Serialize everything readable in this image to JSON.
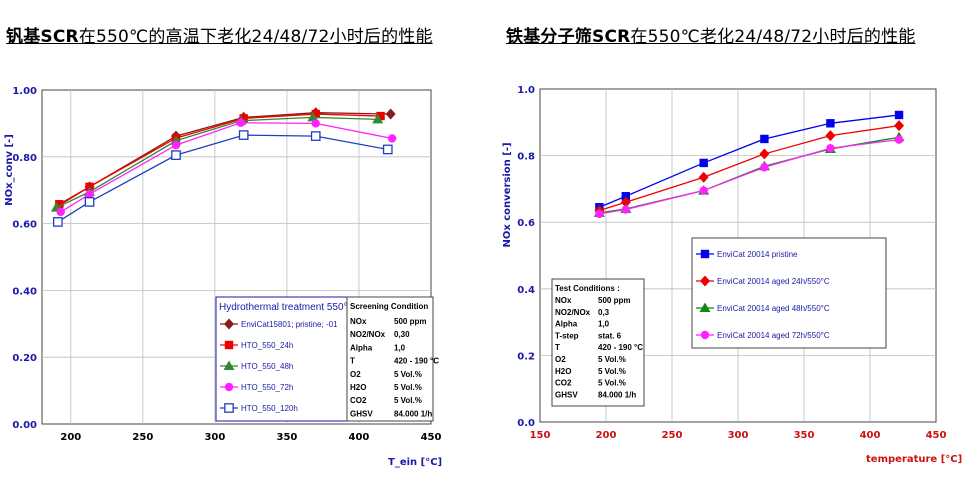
{
  "titles": {
    "left": {
      "bold": "钒基SCR",
      "rest": "在550℃的高温下老化24/48/72小时后的性能"
    },
    "right": {
      "bold": "铁基分子筛SCR",
      "rest": "在550℃老化24/48/72小时后的性能"
    }
  },
  "colors": {
    "pristine_left": "#8b1a1a",
    "h24_left": "#ee0000",
    "h48_left": "#2e8b2e",
    "h72_left": "#ff22ff",
    "h120_left": "#1f3fbf",
    "pristine_right": "#0000ee",
    "h24_right": "#ee0000",
    "h48_right": "#118811",
    "h72_right": "#ff22ff"
  },
  "chart_data": [
    {
      "type": "line",
      "xlabel": "T_ein [°C]",
      "ylabel": "NOx_conv [-]",
      "xlim": [
        180,
        450
      ],
      "ylim": [
        0.0,
        1.0
      ],
      "xticks": [
        "200",
        "250",
        "300",
        "350",
        "400",
        "450"
      ],
      "yticks": [
        "0.00",
        "0.20",
        "0.40",
        "0.60",
        "0.80",
        "1.00"
      ],
      "grid": true,
      "legend_title": "Hydrothermal treatment 550°C",
      "legend_placement": "bottom-right",
      "series": [
        {
          "name": "EnviCat15801; pristine; -01",
          "marker": "diamond",
          "color_key": "pristine_left",
          "x": [
            192,
            213,
            273,
            320,
            370,
            422
          ],
          "y": [
            0.655,
            0.71,
            0.862,
            0.918,
            0.932,
            0.928
          ]
        },
        {
          "name": "HTO_550_24h",
          "marker": "square",
          "color_key": "h24_left",
          "x": [
            192,
            213,
            273,
            320,
            370,
            415
          ],
          "y": [
            0.658,
            0.71,
            0.856,
            0.915,
            0.928,
            0.922
          ]
        },
        {
          "name": "HTO_550_48h",
          "marker": "triangle",
          "color_key": "h48_left",
          "x": [
            190,
            213,
            273,
            318,
            368,
            413
          ],
          "y": [
            0.648,
            0.695,
            0.848,
            0.908,
            0.918,
            0.912
          ]
        },
        {
          "name": "HTO_550_72h",
          "marker": "circle",
          "color_key": "h72_left",
          "x": [
            193,
            213,
            273,
            318,
            370,
            423
          ],
          "y": [
            0.635,
            0.688,
            0.835,
            0.902,
            0.9,
            0.855
          ]
        },
        {
          "name": "HTO_550_120h",
          "marker": "square-open",
          "color_key": "h120_left",
          "x": [
            191,
            213,
            273,
            320,
            370,
            420
          ],
          "y": [
            0.605,
            0.665,
            0.805,
            0.865,
            0.862,
            0.822
          ]
        }
      ],
      "conditions": {
        "header": "Screening Condition",
        "rows": [
          [
            "NOx",
            "500 ppm"
          ],
          [
            "NO2/NOx",
            "0,30"
          ],
          [
            "Alpha",
            "1,0"
          ],
          [
            "T",
            "420 - 190 °C"
          ],
          [
            "O2",
            "5 Vol.%"
          ],
          [
            "H2O",
            "5 Vol.%"
          ],
          [
            "CO2",
            "5 Vol.%"
          ],
          [
            "GHSV",
            "84.000 1/h"
          ]
        ]
      }
    },
    {
      "type": "line",
      "xlabel": "temperature [°C]",
      "ylabel": "NOx conversion [-]",
      "xlim": [
        150,
        450
      ],
      "ylim": [
        0.0,
        1.0
      ],
      "xticks": [
        "150",
        "200",
        "250",
        "300",
        "350",
        "400",
        "450"
      ],
      "yticks": [
        "0.0",
        "0.2",
        "0.4",
        "0.6",
        "0.8",
        "1.0"
      ],
      "grid": true,
      "legend_placement": "center-right",
      "series": [
        {
          "name": "EnviCat 20014 pristine",
          "marker": "square",
          "color_key": "pristine_right",
          "x": [
            195,
            215,
            274,
            320,
            370,
            422
          ],
          "y": [
            0.645,
            0.678,
            0.778,
            0.85,
            0.897,
            0.922
          ]
        },
        {
          "name": "EnviCat 20014 aged 24h/550°C",
          "marker": "diamond",
          "color_key": "h24_right",
          "x": [
            195,
            215,
            274,
            320,
            370,
            422
          ],
          "y": [
            0.635,
            0.66,
            0.735,
            0.805,
            0.86,
            0.89
          ]
        },
        {
          "name": "EnviCat 20014 aged 48h/550°C",
          "marker": "triangle",
          "color_key": "h48_right",
          "x": [
            195,
            215,
            274,
            320,
            370,
            422
          ],
          "y": [
            0.628,
            0.64,
            0.695,
            0.768,
            0.82,
            0.855
          ]
        },
        {
          "name": "EnviCat 20014 aged 72h/550°C",
          "marker": "circle",
          "color_key": "h72_right",
          "x": [
            195,
            215,
            274,
            320,
            370,
            422
          ],
          "y": [
            0.625,
            0.638,
            0.695,
            0.765,
            0.822,
            0.848
          ]
        }
      ],
      "conditions": {
        "header": "Test Conditions :",
        "rows": [
          [
            "NOx",
            "500 ppm"
          ],
          [
            "NO2/NOx",
            "0,3"
          ],
          [
            "Alpha",
            "1,0"
          ],
          [
            "T-step",
            "stat. 6"
          ],
          [
            "T",
            "420 - 190 °C"
          ],
          [
            "O2",
            "5 Vol.%"
          ],
          [
            "H2O",
            "5 Vol.%"
          ],
          [
            "CO2",
            "5 Vol.%"
          ],
          [
            "GHSV",
            "84.000 1/h"
          ]
        ]
      }
    }
  ]
}
